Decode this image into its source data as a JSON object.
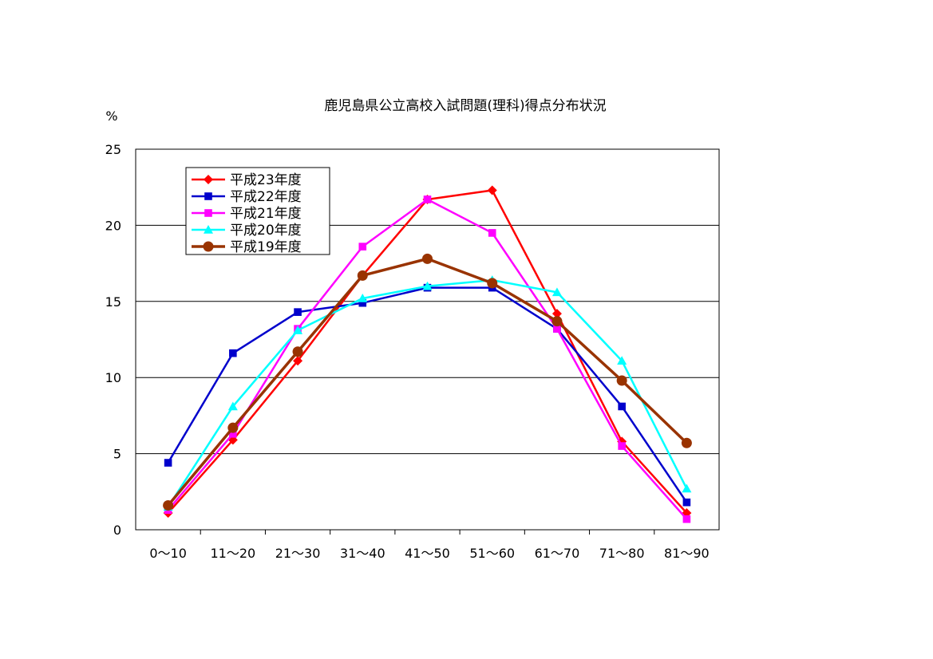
{
  "chart_data": {
    "type": "line",
    "title": "鹿児島県公立高校入試問題(理科)得点分布状況",
    "xlabel": "",
    "ylabel": "%",
    "categories": [
      "0～10",
      "11～20",
      "21～30",
      "31～40",
      "41～50",
      "51～60",
      "61～70",
      "71～80",
      "81～90"
    ],
    "ylim": [
      0,
      25
    ],
    "yticks": [
      "0",
      "5",
      "10",
      "15",
      "20",
      "25"
    ],
    "grid": true,
    "legend_position": "top-left",
    "series": [
      {
        "name": "平成23年度",
        "color": "#ff0000",
        "marker": "diamond",
        "values": [
          1.1,
          5.9,
          11.1,
          16.7,
          21.7,
          22.3,
          14.2,
          5.8,
          1.1
        ]
      },
      {
        "name": "平成22年度",
        "color": "#0000cc",
        "marker": "square",
        "values": [
          4.4,
          11.6,
          14.3,
          14.9,
          15.9,
          15.9,
          13.2,
          8.1,
          1.8
        ]
      },
      {
        "name": "平成21年度",
        "color": "#ff00ff",
        "marker": "square",
        "values": [
          1.3,
          6.3,
          13.2,
          18.6,
          21.7,
          19.5,
          13.2,
          5.5,
          0.7
        ]
      },
      {
        "name": "平成20年度",
        "color": "#00ffff",
        "marker": "triangle",
        "values": [
          1.5,
          8.1,
          13.1,
          15.2,
          16.0,
          16.4,
          15.6,
          11.1,
          2.7
        ]
      },
      {
        "name": "平成19年度",
        "color": "#993300",
        "marker": "circle",
        "values": [
          1.6,
          6.7,
          11.7,
          16.7,
          17.8,
          16.2,
          13.7,
          9.8,
          5.7
        ]
      }
    ]
  }
}
